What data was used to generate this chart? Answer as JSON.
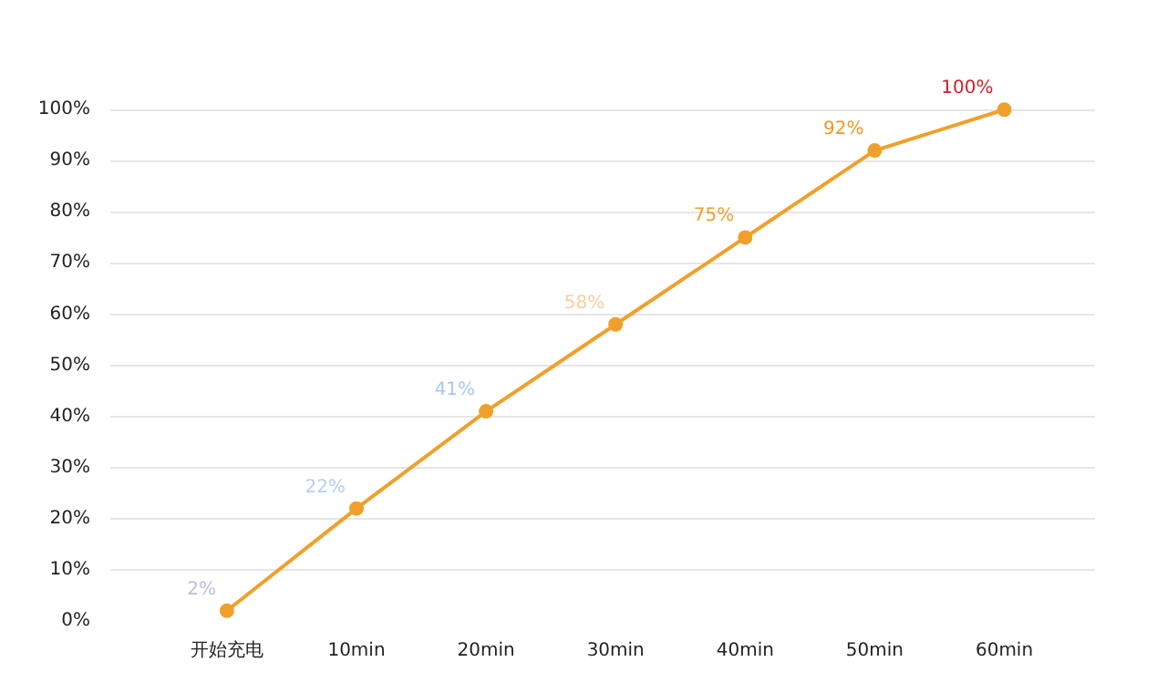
{
  "chart_data": {
    "type": "line",
    "categories": [
      "开始充电",
      "10min",
      "20min",
      "30min",
      "40min",
      "50min",
      "60min"
    ],
    "series": [
      {
        "color": "#f0a02a",
        "colors": [
          "#b8c0dc",
          "#b4d0ee",
          "#a8c8ec",
          "#f6cfa0",
          "#f0a02a",
          "#ee9822",
          "#d0202a"
        ],
        "values": [
          2,
          22,
          41,
          58,
          75,
          92,
          100
        ],
        "value_labels": [
          "2%",
          "22%",
          "41%",
          "58%",
          "75%",
          "92%",
          "100%"
        ]
      }
    ],
    "ylim": [
      0,
      100
    ],
    "yticks": [
      {
        "value": 0,
        "label": "0%"
      },
      {
        "value": 10,
        "label": "10%"
      },
      {
        "value": 20,
        "label": "20%"
      },
      {
        "value": 30,
        "label": "30%"
      },
      {
        "value": 40,
        "label": "40%"
      },
      {
        "value": 50,
        "label": "50%"
      },
      {
        "value": 60,
        "label": "60%"
      },
      {
        "value": 70,
        "label": "70%"
      },
      {
        "value": 80,
        "label": "80%"
      },
      {
        "value": 90,
        "label": "90%"
      },
      {
        "value": 100,
        "label": "100%"
      }
    ],
    "grid": "y",
    "marker": "circle",
    "line_style": "solid"
  }
}
